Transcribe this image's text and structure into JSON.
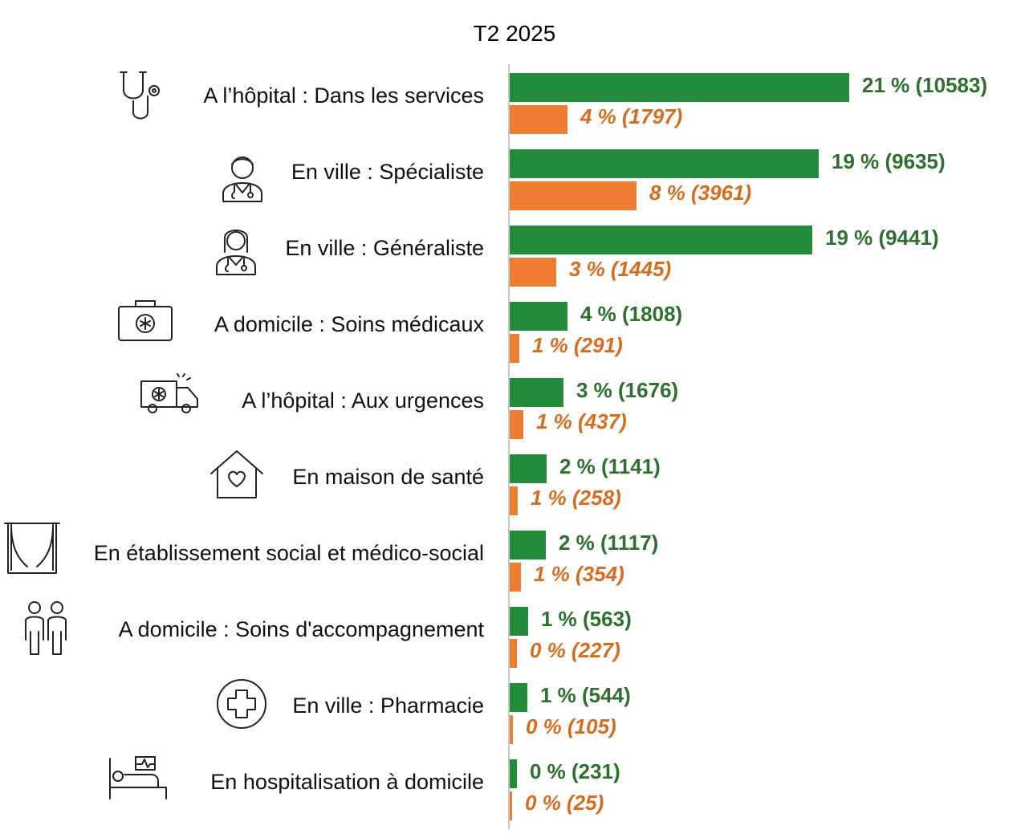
{
  "chart_data": {
    "type": "bar",
    "orientation": "horizontal",
    "title": "T2 2025",
    "categories": [
      "A l’hôpital : Dans les services",
      "En ville : Spécialiste",
      "En ville : Généraliste",
      "A domicile : Soins médicaux",
      "A l’hôpital : Aux urgences",
      "En maison de santé",
      "En établissement social et médico-social",
      "A domicile : Soins d'accompagnement",
      "En ville : Pharmacie",
      "En hospitalisation à domicile"
    ],
    "icons": [
      "stethoscope-icon",
      "male-doctor-icon",
      "female-doctor-icon",
      "medical-kit-icon",
      "ambulance-icon",
      "house-heart-icon",
      "window-curtain-icon",
      "two-people-icon",
      "pharmacy-cross-icon",
      "hospital-bed-icon"
    ],
    "series": [
      {
        "color": "#228b3c",
        "values": [
          10583,
          9635,
          9441,
          1808,
          1676,
          1141,
          1117,
          563,
          544,
          231
        ],
        "labels": [
          "21 % (10583)",
          "19 % (9635)",
          "19 % (9441)",
          "4 % (1808)",
          "3 % (1676)",
          "2 % (1141)",
          "2 % (1117)",
          "1 % (563)",
          "1 % (544)",
          "0 % (231)"
        ]
      },
      {
        "color": "#ed7d31",
        "values": [
          1797,
          3961,
          1445,
          291,
          437,
          258,
          354,
          227,
          105,
          25
        ],
        "labels": [
          "4 % (1797)",
          "8 % (3961)",
          "3 % (1445)",
          "1 % (291)",
          "1 % (437)",
          "1 % (258)",
          "1 % (354)",
          "0 % (227)",
          "0 % (105)",
          "0 % (25)"
        ]
      }
    ],
    "xlim": [
      0,
      10583
    ],
    "grid": false,
    "legend": "none"
  }
}
